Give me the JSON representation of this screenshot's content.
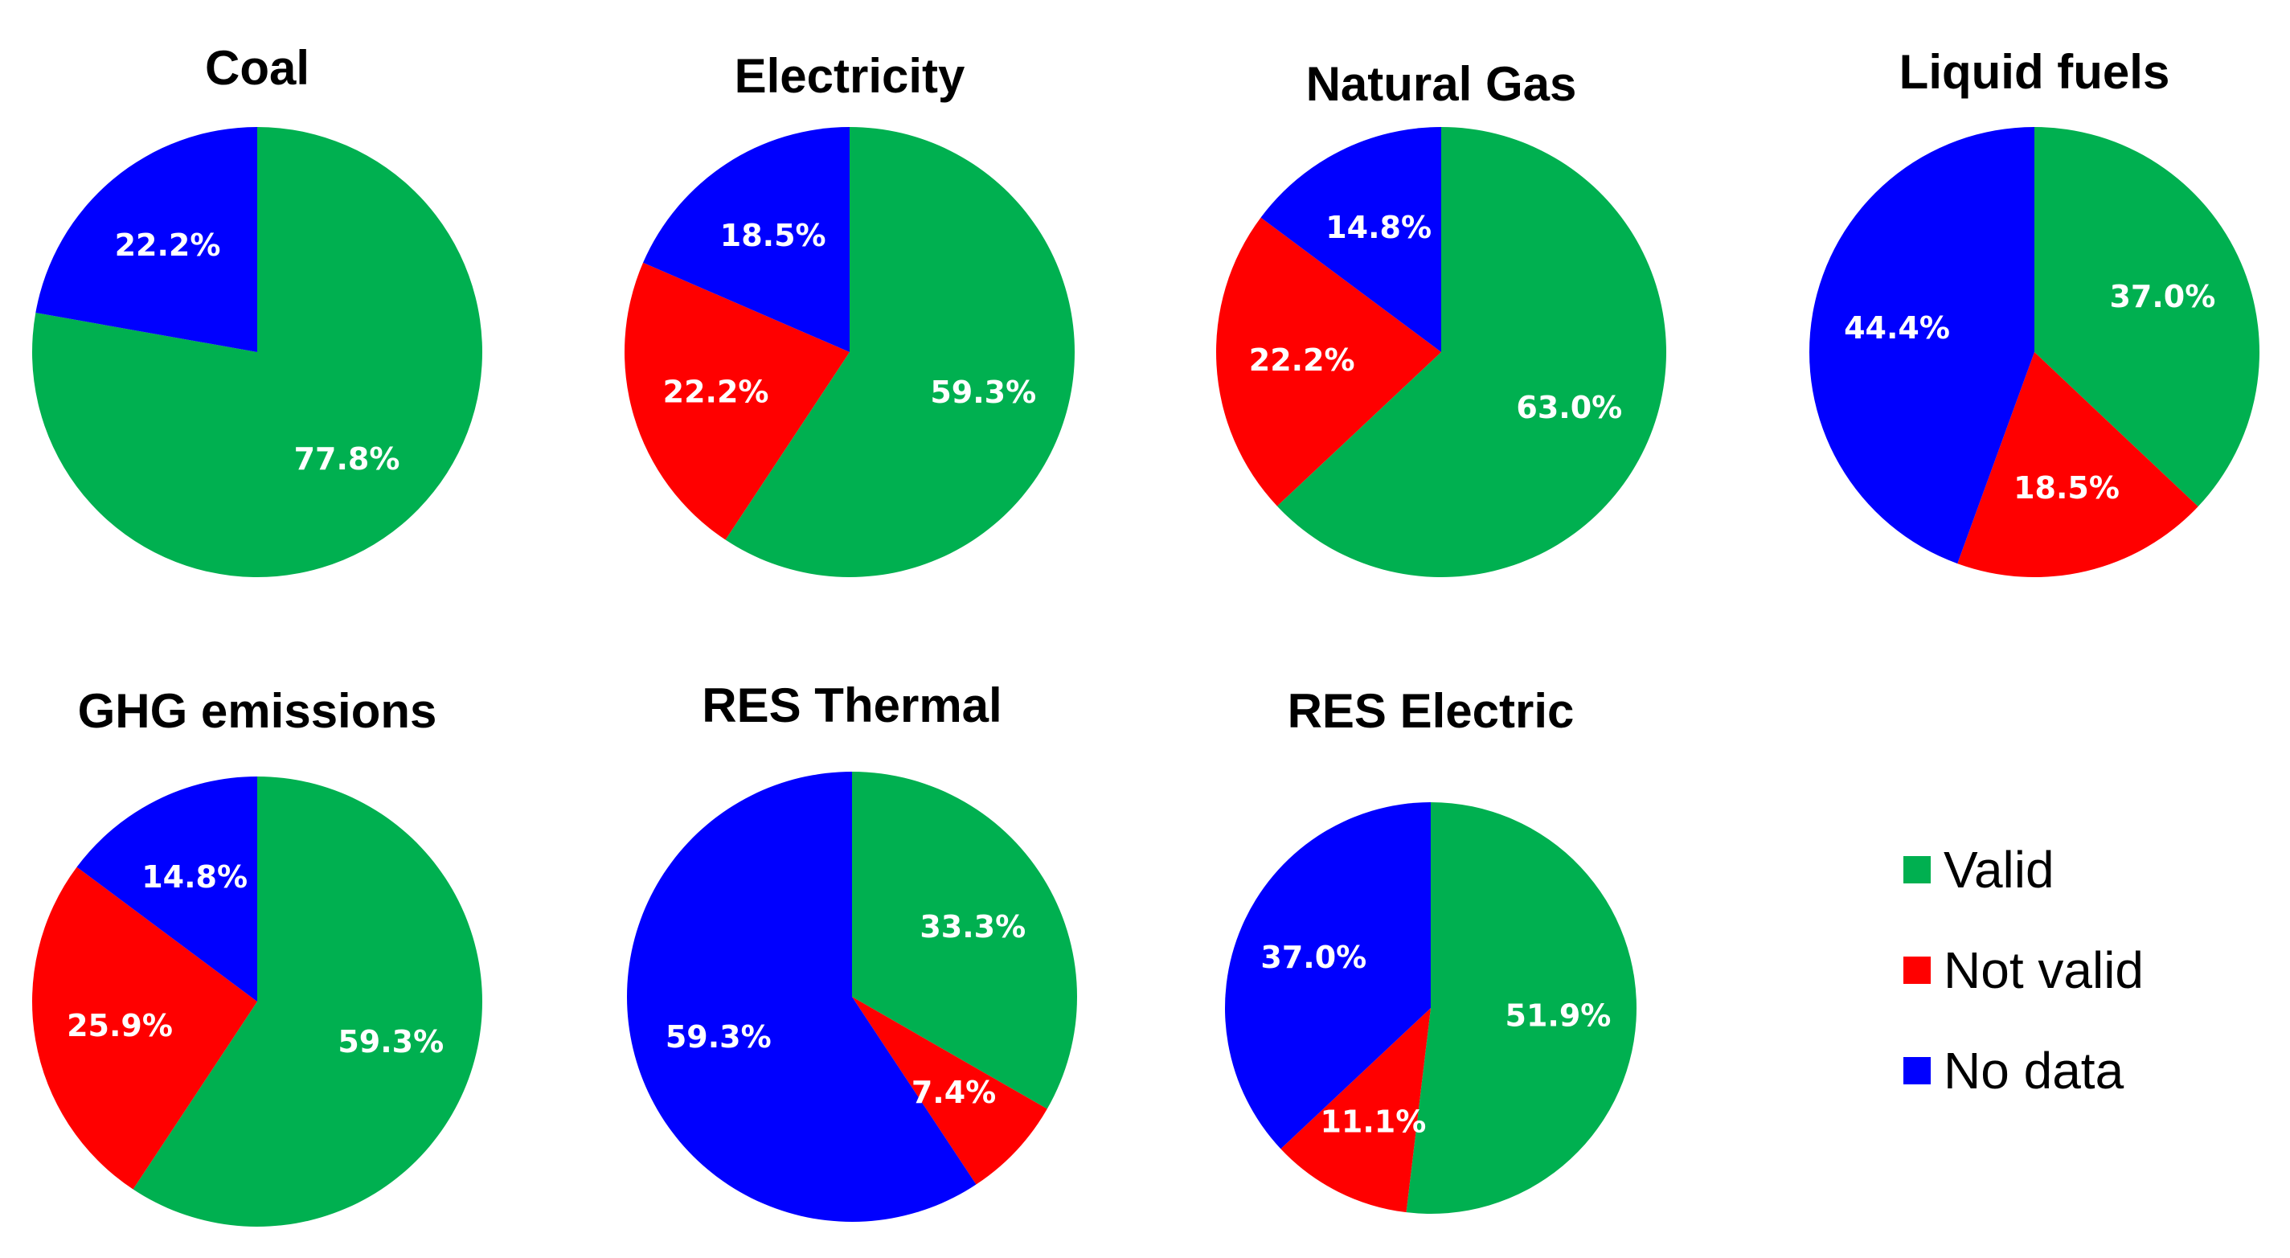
{
  "chart_data": [
    {
      "type": "pie",
      "title": "Coal",
      "slices": [
        {
          "category": "Valid",
          "value": 77.8,
          "label": "77.8%"
        },
        {
          "category": "Not valid",
          "value": 0,
          "label": ""
        },
        {
          "category": "No data",
          "value": 22.2,
          "label": "22.2%"
        }
      ]
    },
    {
      "type": "pie",
      "title": "Electricity",
      "slices": [
        {
          "category": "Valid",
          "value": 59.3,
          "label": "59.3%"
        },
        {
          "category": "Not valid",
          "value": 22.2,
          "label": "22.2%"
        },
        {
          "category": "No data",
          "value": 18.5,
          "label": "18.5%"
        }
      ]
    },
    {
      "type": "pie",
      "title": "Natural Gas",
      "slices": [
        {
          "category": "Valid",
          "value": 63.0,
          "label": "63.0%"
        },
        {
          "category": "Not valid",
          "value": 22.2,
          "label": "22.2%"
        },
        {
          "category": "No data",
          "value": 14.8,
          "label": "14.8%"
        }
      ]
    },
    {
      "type": "pie",
      "title": "Liquid fuels",
      "slices": [
        {
          "category": "Valid",
          "value": 37.0,
          "label": "37.0%"
        },
        {
          "category": "Not valid",
          "value": 18.5,
          "label": "18.5%"
        },
        {
          "category": "No data",
          "value": 44.4,
          "label": "44.4%"
        }
      ]
    },
    {
      "type": "pie",
      "title": "GHG emissions",
      "slices": [
        {
          "category": "Valid",
          "value": 59.3,
          "label": "59.3%"
        },
        {
          "category": "Not valid",
          "value": 25.9,
          "label": "25.9%"
        },
        {
          "category": "No data",
          "value": 14.8,
          "label": "14.8%"
        }
      ]
    },
    {
      "type": "pie",
      "title": "RES Thermal",
      "slices": [
        {
          "category": "Valid",
          "value": 33.3,
          "label": "33.3%"
        },
        {
          "category": "Not valid",
          "value": 7.4,
          "label": "7.4%"
        },
        {
          "category": "No data",
          "value": 59.3,
          "label": "59.3%"
        }
      ]
    },
    {
      "type": "pie",
      "title": "RES Electric",
      "slices": [
        {
          "category": "Valid",
          "value": 51.9,
          "label": "51.9%"
        },
        {
          "category": "Not valid",
          "value": 11.1,
          "label": "11.1%"
        },
        {
          "category": "No data",
          "value": 37.0,
          "label": "37.0%"
        }
      ]
    }
  ],
  "legend": [
    {
      "label": "Valid",
      "color": "#00b050"
    },
    {
      "label": "Not valid",
      "color": "#ff0000"
    },
    {
      "label": "No data",
      "color": "#0000ff"
    }
  ]
}
